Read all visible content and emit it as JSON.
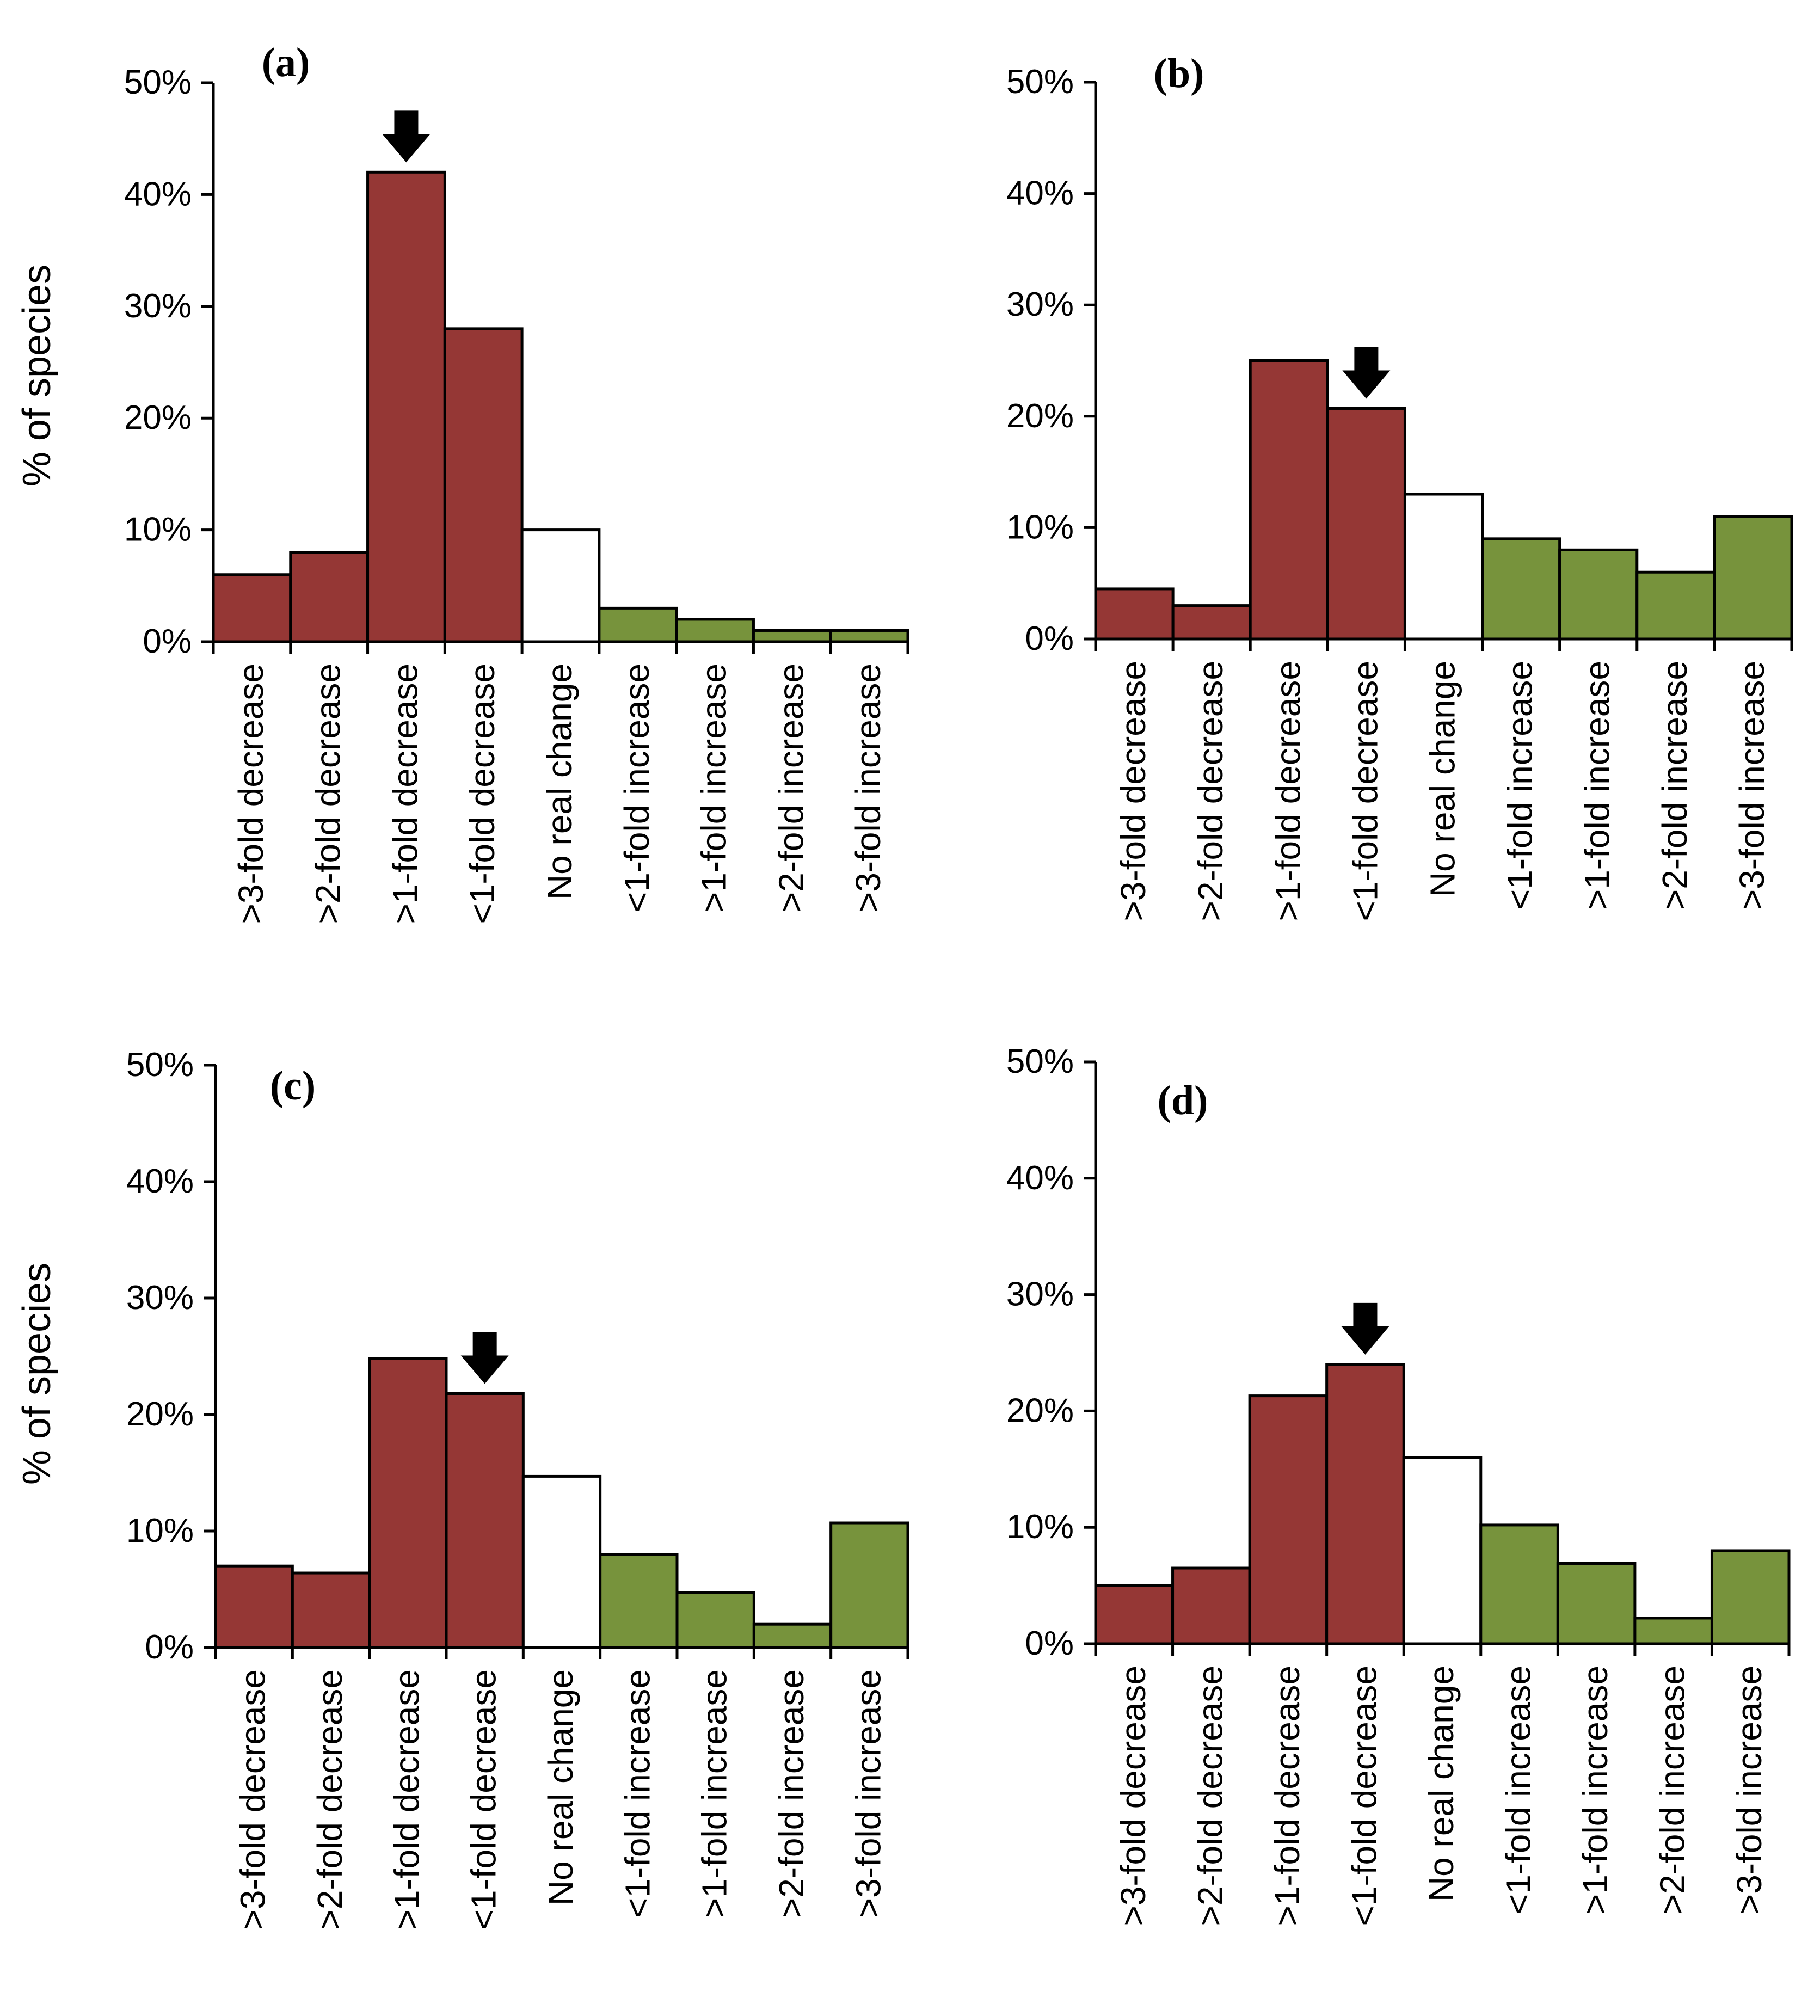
{
  "figure": {
    "colors": {
      "decrease": "#953735",
      "no_change": "#ffffff",
      "increase": "#77933c",
      "outline": "#000000",
      "arrow": "#000000"
    }
  },
  "chart_data": [
    {
      "type": "bar",
      "panel": "(a)",
      "ylabel": "% of species",
      "ylim": [
        0,
        50
      ],
      "yticks": [
        "0%",
        "10%",
        "20%",
        "30%",
        "40%",
        "50%"
      ],
      "categories": [
        ">3-fold decrease",
        ">2-fold decrease",
        ">1-fold decrease",
        "<1-fold decrease",
        "No real change",
        "<1-fold increase",
        ">1-fold increase",
        ">2-fold increase",
        ">3-fold increase"
      ],
      "values": [
        6,
        8,
        42,
        28,
        10,
        3,
        2,
        1,
        1
      ],
      "marked_category": ">1-fold decrease"
    },
    {
      "type": "bar",
      "panel": "(b)",
      "ylabel": "",
      "ylim": [
        0,
        50
      ],
      "yticks": [
        "0%",
        "10%",
        "20%",
        "30%",
        "40%",
        "50%"
      ],
      "categories": [
        ">3-fold decrease",
        ">2-fold decrease",
        ">1-fold decrease",
        "<1-fold decrease",
        "No real change",
        "<1-fold increase",
        ">1-fold increase",
        ">2-fold increase",
        ">3-fold increase"
      ],
      "values": [
        4.5,
        3,
        25,
        20.7,
        13,
        9,
        8,
        6,
        11
      ],
      "marked_category": "<1-fold decrease"
    },
    {
      "type": "bar",
      "panel": "(c)",
      "ylabel": "% of species",
      "ylim": [
        0,
        50
      ],
      "yticks": [
        "0%",
        "10%",
        "20%",
        "30%",
        "40%",
        "50%"
      ],
      "categories": [
        ">3-fold decrease",
        ">2-fold decrease",
        ">1-fold decrease",
        "<1-fold decrease",
        "No real change",
        "<1-fold increase",
        ">1-fold increase",
        ">2-fold increase",
        ">3-fold increase"
      ],
      "values": [
        7,
        6.4,
        24.8,
        21.8,
        14.7,
        8,
        4.7,
        2,
        10.7
      ],
      "marked_category": "<1-fold decrease"
    },
    {
      "type": "bar",
      "panel": "(d)",
      "ylabel": "",
      "ylim": [
        0,
        50
      ],
      "yticks": [
        "0%",
        "10%",
        "20%",
        "30%",
        "40%",
        "50%"
      ],
      "categories": [
        ">3-fold decrease",
        ">2-fold decrease",
        ">1-fold decrease",
        "<1-fold decrease",
        "No real change",
        "<1-fold increase",
        ">1-fold increase",
        ">2-fold increase",
        ">3-fold increase"
      ],
      "values": [
        5,
        6.5,
        21.3,
        24,
        16,
        10.2,
        6.9,
        2.2,
        8
      ],
      "marked_category": "<1-fold decrease"
    }
  ]
}
